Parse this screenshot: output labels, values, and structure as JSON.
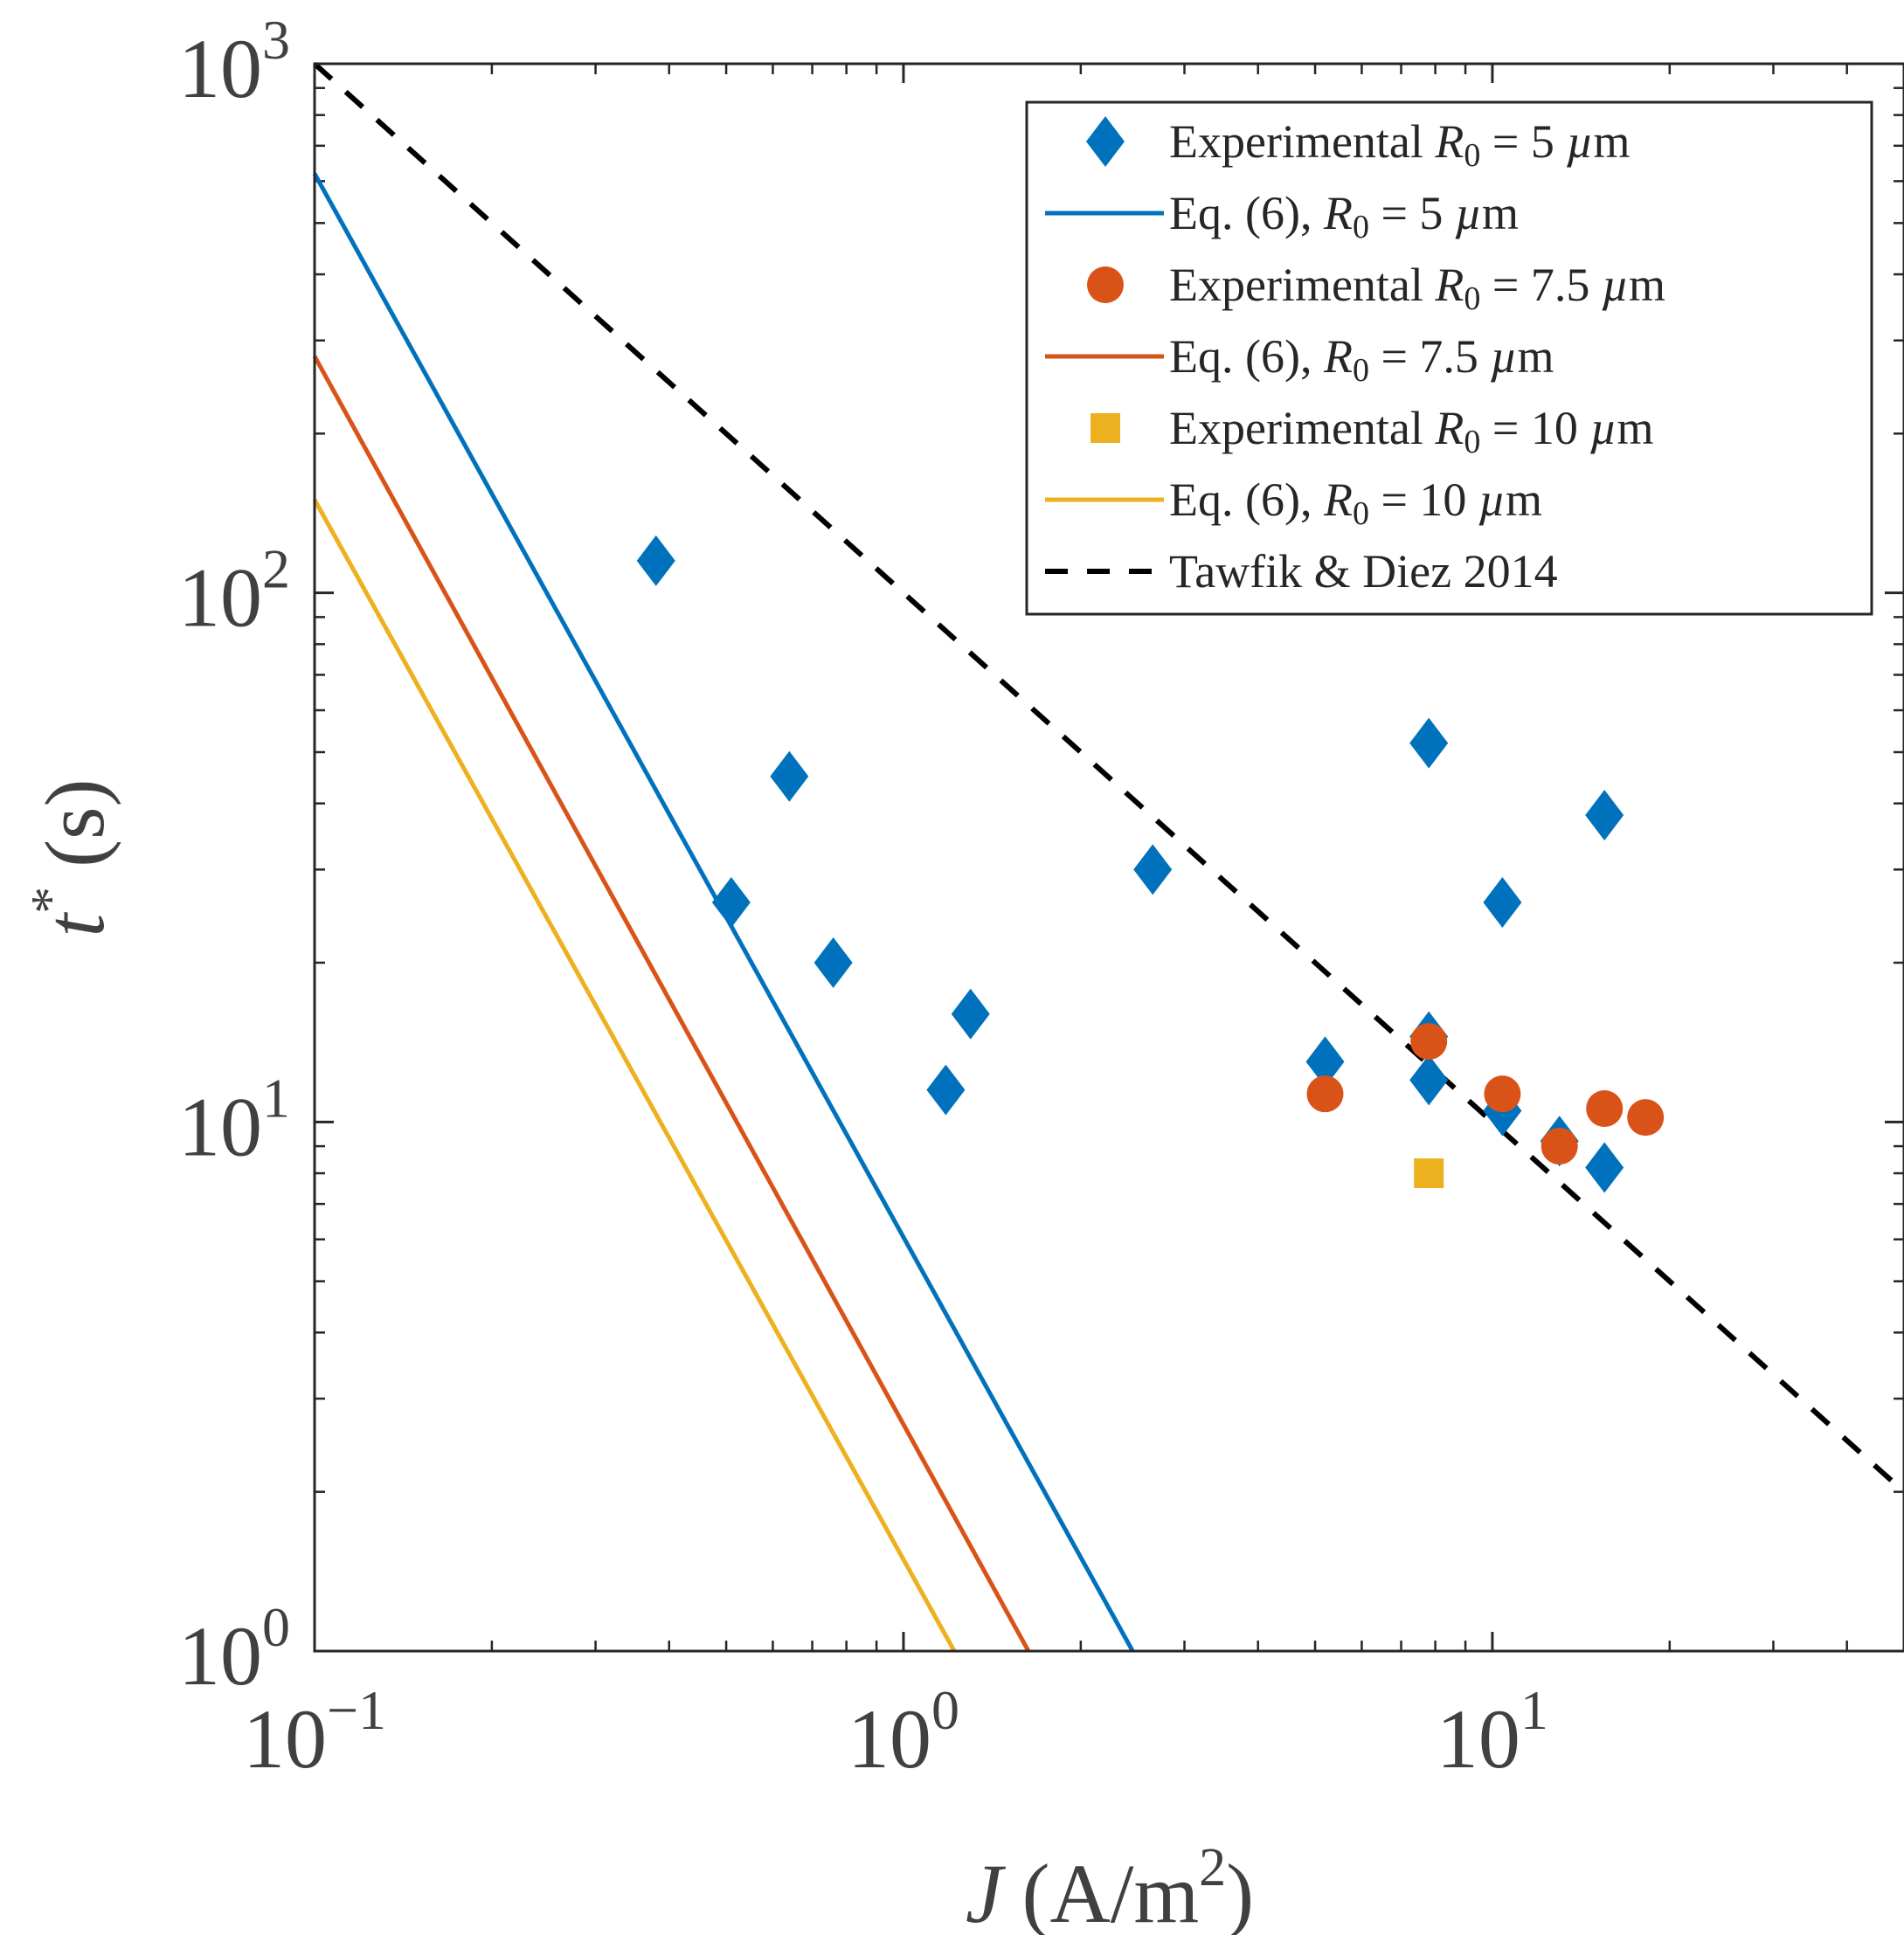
{
  "chart_data": {
    "type": "scatter",
    "scale": {
      "x": "log",
      "y": "log"
    },
    "xlim": [
      0.1,
      50
    ],
    "ylim": [
      1,
      1000
    ],
    "xlabel": {
      "var": "J",
      "rest": "(A/m",
      "sup": "2",
      "close": ")"
    },
    "ylabel": {
      "var": "t",
      "sup": "*",
      "rest": "(s)"
    },
    "x_ticks": [
      {
        "value": 0.1,
        "base": "10",
        "exp": "−1"
      },
      {
        "value": 1,
        "base": "10",
        "exp": "0"
      },
      {
        "value": 10,
        "base": "10",
        "exp": "1"
      }
    ],
    "y_ticks": [
      {
        "value": 1,
        "base": "10",
        "exp": "0"
      },
      {
        "value": 10,
        "base": "10",
        "exp": "1"
      },
      {
        "value": 100,
        "base": "10",
        "exp": "2"
      },
      {
        "value": 1000,
        "base": "10",
        "exp": "3"
      }
    ],
    "legend_position": "top-right",
    "series": [
      {
        "name": "Experimental R0 = 5 µm",
        "legend": {
          "pre": "Experimental ",
          "sym": "R",
          "sub": "0",
          "post": " = 5 ",
          "unit_it": "µ",
          "unit": "m"
        },
        "kind": "scatter",
        "marker": "diamond",
        "color": "#0072BD",
        "points": [
          [
            0.38,
            115
          ],
          [
            0.51,
            26
          ],
          [
            0.64,
            45
          ],
          [
            0.76,
            20
          ],
          [
            1.18,
            11.5
          ],
          [
            1.3,
            16
          ],
          [
            2.65,
            30
          ],
          [
            5.2,
            13
          ],
          [
            7.8,
            14.5
          ],
          [
            7.8,
            12
          ],
          [
            7.8,
            52
          ],
          [
            10.4,
            10.5
          ],
          [
            10.4,
            26
          ],
          [
            13,
            9.2
          ],
          [
            15.5,
            8.2
          ],
          [
            15.5,
            38
          ]
        ]
      },
      {
        "name": "Eq. (6), R0 = 5 µm",
        "legend": {
          "pre": "Eq. (6), ",
          "sym": "R",
          "sub": "0",
          "post": " = 5 ",
          "unit_it": "µ",
          "unit": "m"
        },
        "kind": "line",
        "style": "solid",
        "color": "#0072BD",
        "points": [
          [
            0.1,
            620
          ],
          [
            2.45,
            1
          ]
        ]
      },
      {
        "name": "Experimental R0 = 7.5 µm",
        "legend": {
          "pre": "Experimental ",
          "sym": "R",
          "sub": "0",
          "post": " = 7.5 ",
          "unit_it": "µ",
          "unit": "m"
        },
        "kind": "scatter",
        "marker": "circle",
        "color": "#D95319",
        "points": [
          [
            5.2,
            11.3
          ],
          [
            7.8,
            14.2
          ],
          [
            10.4,
            11.3
          ],
          [
            13,
            9.0
          ],
          [
            15.5,
            10.6
          ],
          [
            18.2,
            10.2
          ]
        ]
      },
      {
        "name": "Eq. (6), R0 = 7.5 µm",
        "legend": {
          "pre": "Eq. (6), ",
          "sym": "R",
          "sub": "0",
          "post": " = 7.5 ",
          "unit_it": "µ",
          "unit": "m"
        },
        "kind": "line",
        "style": "solid",
        "color": "#D95319",
        "points": [
          [
            0.1,
            280
          ],
          [
            1.63,
            1
          ]
        ]
      },
      {
        "name": "Experimental R0 = 10 µm",
        "legend": {
          "pre": "Experimental ",
          "sym": "R",
          "sub": "0",
          "post": " = 10 ",
          "unit_it": "µ",
          "unit": "m"
        },
        "kind": "scatter",
        "marker": "square",
        "color": "#EDB120",
        "points": [
          [
            7.8,
            8.0
          ]
        ]
      },
      {
        "name": "Eq. (6), R0 = 10 µm",
        "legend": {
          "pre": "Eq. (6), ",
          "sym": "R",
          "sub": "0",
          "post": " = 10 ",
          "unit_it": "µ",
          "unit": "m"
        },
        "kind": "line",
        "style": "solid",
        "color": "#EDB120",
        "points": [
          [
            0.1,
            150
          ],
          [
            1.22,
            1
          ]
        ]
      },
      {
        "name": "Tawfik & Diez 2014",
        "legend": {
          "pre": "Tawfik & Diez 2014",
          "sym": "",
          "sub": "",
          "post": "",
          "unit_it": "",
          "unit": ""
        },
        "kind": "line",
        "style": "dashed",
        "color": "#000000",
        "points": [
          [
            0.1,
            1000
          ],
          [
            50,
            2.0
          ]
        ]
      }
    ]
  }
}
